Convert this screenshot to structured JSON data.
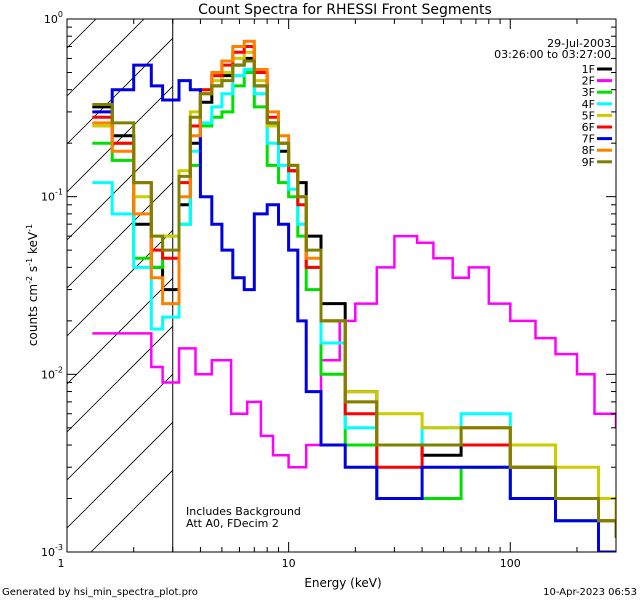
{
  "chart_data": {
    "type": "line",
    "title": "Count Spectra for RHESSI Front Segments",
    "xlabel": "Energy (keV)",
    "ylabel_parts": [
      "counts cm",
      "-2",
      " s",
      "-1",
      " keV",
      "-1"
    ],
    "x_scale": "log",
    "y_scale": "log",
    "xlim": [
      1,
      300
    ],
    "ylim": [
      0.001,
      1
    ],
    "x_ticks": [
      {
        "v": 10,
        "label": "10"
      },
      {
        "v": 100,
        "label": "100"
      }
    ],
    "x_corner_label": "1",
    "y_ticks": [
      {
        "v": 1,
        "base": "10",
        "exp": "0"
      },
      {
        "v": 0.1,
        "base": "10",
        "exp": "-1"
      },
      {
        "v": 0.01,
        "base": "10",
        "exp": "-2"
      },
      {
        "v": 0.001,
        "base": "10",
        "exp": "-3"
      }
    ],
    "hatched_region_x": [
      1,
      3
    ],
    "date": "29-Jul-2003",
    "time_range": "03:26:00 to 03:27:00",
    "annotations": [
      "Includes Background",
      "Att A0, FDecim 2"
    ],
    "legend_position": "top-right",
    "series": [
      {
        "name": "1F",
        "color": "#000000",
        "x": [
          1.3,
          1.6,
          2.0,
          2.4,
          2.7,
          3.2,
          3.6,
          4.0,
          4.5,
          5.0,
          5.6,
          6.3,
          7.0,
          8.0,
          9.0,
          10.0,
          11.0,
          12.0,
          14.0,
          18.0,
          25.0,
          40.0,
          60.0,
          100.0,
          160.0,
          250.0,
          300.0
        ],
        "y": [
          0.32,
          0.22,
          0.07,
          0.04,
          0.03,
          0.09,
          0.2,
          0.34,
          0.42,
          0.48,
          0.55,
          0.6,
          0.42,
          0.26,
          0.18,
          0.14,
          0.12,
          0.06,
          0.025,
          0.008,
          0.004,
          0.0035,
          0.004,
          0.003,
          0.002,
          0.0015,
          0.0012
        ]
      },
      {
        "name": "2F",
        "color": "#ff00ff",
        "x": [
          1.3,
          2.0,
          2.4,
          2.7,
          3.2,
          3.8,
          4.5,
          5.5,
          6.5,
          7.5,
          8.5,
          10.0,
          12.0,
          14.0,
          17.0,
          20.0,
          25.0,
          30.0,
          38.0,
          45.0,
          55.0,
          65.0,
          80.0,
          100.0,
          130.0,
          160.0,
          200.0,
          240.0,
          300.0
        ],
        "y": [
          0.017,
          0.017,
          0.011,
          0.009,
          0.014,
          0.01,
          0.012,
          0.006,
          0.007,
          0.0045,
          0.0035,
          0.003,
          0.004,
          0.012,
          0.02,
          0.025,
          0.04,
          0.06,
          0.055,
          0.045,
          0.035,
          0.04,
          0.025,
          0.02,
          0.016,
          0.013,
          0.01,
          0.006,
          0.005
        ]
      },
      {
        "name": "3F",
        "color": "#00e000",
        "x": [
          1.3,
          1.6,
          2.0,
          2.4,
          2.7,
          3.2,
          3.6,
          4.0,
          4.5,
          5.0,
          5.6,
          6.3,
          7.0,
          8.0,
          9.0,
          10.0,
          11.0,
          12.0,
          14.0,
          18.0,
          25.0,
          40.0,
          60.0,
          100.0,
          160.0,
          250.0,
          300.0
        ],
        "y": [
          0.2,
          0.16,
          0.045,
          0.04,
          0.06,
          0.07,
          0.15,
          0.25,
          0.28,
          0.3,
          0.42,
          0.5,
          0.32,
          0.15,
          0.12,
          0.1,
          0.06,
          0.03,
          0.01,
          0.004,
          0.002,
          0.002,
          0.003,
          0.002,
          0.0015,
          0.001,
          0.001
        ]
      },
      {
        "name": "4F",
        "color": "#00ffff",
        "x": [
          1.3,
          1.6,
          2.0,
          2.4,
          2.7,
          3.2,
          3.6,
          4.0,
          4.5,
          5.0,
          5.6,
          6.3,
          7.0,
          8.0,
          9.0,
          10.0,
          11.0,
          12.0,
          14.0,
          18.0,
          25.0,
          40.0,
          60.0,
          100.0,
          160.0,
          250.0,
          300.0
        ],
        "y": [
          0.12,
          0.08,
          0.04,
          0.018,
          0.021,
          0.07,
          0.18,
          0.26,
          0.32,
          0.38,
          0.48,
          0.52,
          0.38,
          0.2,
          0.15,
          0.11,
          0.07,
          0.04,
          0.015,
          0.005,
          0.004,
          0.005,
          0.006,
          0.003,
          0.002,
          0.0015,
          0.0012
        ]
      },
      {
        "name": "5F",
        "color": "#cccc00",
        "x": [
          1.3,
          1.6,
          2.0,
          2.4,
          2.7,
          3.2,
          3.6,
          4.0,
          4.5,
          5.0,
          5.6,
          6.3,
          7.0,
          8.0,
          9.0,
          10.0,
          11.0,
          12.0,
          14.0,
          18.0,
          25.0,
          40.0,
          60.0,
          100.0,
          160.0,
          250.0,
          300.0
        ],
        "y": [
          0.25,
          0.2,
          0.1,
          0.06,
          0.06,
          0.14,
          0.3,
          0.4,
          0.45,
          0.5,
          0.6,
          0.65,
          0.45,
          0.25,
          0.2,
          0.15,
          0.1,
          0.04,
          0.02,
          0.008,
          0.006,
          0.005,
          0.005,
          0.004,
          0.003,
          0.002,
          0.0015
        ]
      },
      {
        "name": "6F",
        "color": "#ff0000",
        "x": [
          1.3,
          1.6,
          2.0,
          2.4,
          2.7,
          3.2,
          3.6,
          4.0,
          4.5,
          5.0,
          5.6,
          6.3,
          7.0,
          8.0,
          9.0,
          10.0,
          11.0,
          12.0,
          14.0,
          18.0,
          25.0,
          40.0,
          60.0,
          100.0,
          160.0,
          250.0,
          300.0
        ],
        "y": [
          0.28,
          0.2,
          0.12,
          0.05,
          0.045,
          0.12,
          0.25,
          0.4,
          0.48,
          0.55,
          0.65,
          0.7,
          0.5,
          0.28,
          0.2,
          0.14,
          0.09,
          0.04,
          0.02,
          0.006,
          0.003,
          0.004,
          0.004,
          0.003,
          0.002,
          0.0015,
          0.0012
        ]
      },
      {
        "name": "7F",
        "color": "#0000e0",
        "x": [
          1.3,
          1.6,
          2.0,
          2.4,
          2.7,
          3.2,
          3.6,
          4.0,
          4.5,
          5.0,
          5.6,
          6.3,
          7.0,
          8.0,
          9.0,
          10.0,
          11.0,
          12.0,
          14.0,
          18.0,
          25.0,
          40.0,
          60.0,
          100.0,
          160.0,
          250.0,
          300.0
        ],
        "y": [
          0.3,
          0.4,
          0.55,
          0.42,
          0.35,
          0.45,
          0.4,
          0.1,
          0.07,
          0.05,
          0.035,
          0.03,
          0.08,
          0.09,
          0.07,
          0.05,
          0.02,
          0.008,
          0.004,
          0.003,
          0.002,
          0.003,
          0.003,
          0.002,
          0.0015,
          0.001,
          0.001
        ]
      },
      {
        "name": "8F",
        "color": "#ff8000",
        "x": [
          1.3,
          1.6,
          2.0,
          2.4,
          2.7,
          3.2,
          3.6,
          4.0,
          4.5,
          5.0,
          5.6,
          6.3,
          7.0,
          8.0,
          9.0,
          10.0,
          11.0,
          12.0,
          14.0,
          18.0,
          25.0,
          40.0,
          60.0,
          100.0,
          160.0,
          250.0,
          300.0
        ],
        "y": [
          0.26,
          0.18,
          0.08,
          0.035,
          0.025,
          0.1,
          0.22,
          0.38,
          0.5,
          0.58,
          0.7,
          0.75,
          0.52,
          0.3,
          0.22,
          0.15,
          0.1,
          0.045,
          0.02,
          0.007,
          0.004,
          0.004,
          0.005,
          0.003,
          0.002,
          0.0015,
          0.0012
        ]
      },
      {
        "name": "9F",
        "color": "#808000",
        "x": [
          1.3,
          1.6,
          2.0,
          2.4,
          2.7,
          3.2,
          3.6,
          4.0,
          4.5,
          5.0,
          5.6,
          6.3,
          7.0,
          8.0,
          9.0,
          10.0,
          11.0,
          12.0,
          14.0,
          18.0,
          25.0,
          40.0,
          60.0,
          100.0,
          160.0,
          250.0,
          300.0
        ],
        "y": [
          0.33,
          0.26,
          0.12,
          0.06,
          0.05,
          0.13,
          0.28,
          0.38,
          0.42,
          0.45,
          0.55,
          0.58,
          0.42,
          0.26,
          0.2,
          0.15,
          0.1,
          0.05,
          0.02,
          0.007,
          0.004,
          0.004,
          0.005,
          0.003,
          0.002,
          0.0015,
          0.0012
        ]
      }
    ]
  },
  "footer": {
    "left": "Generated by hsi_min_spectra_plot.pro",
    "right": "10-Apr-2023 06:53"
  }
}
